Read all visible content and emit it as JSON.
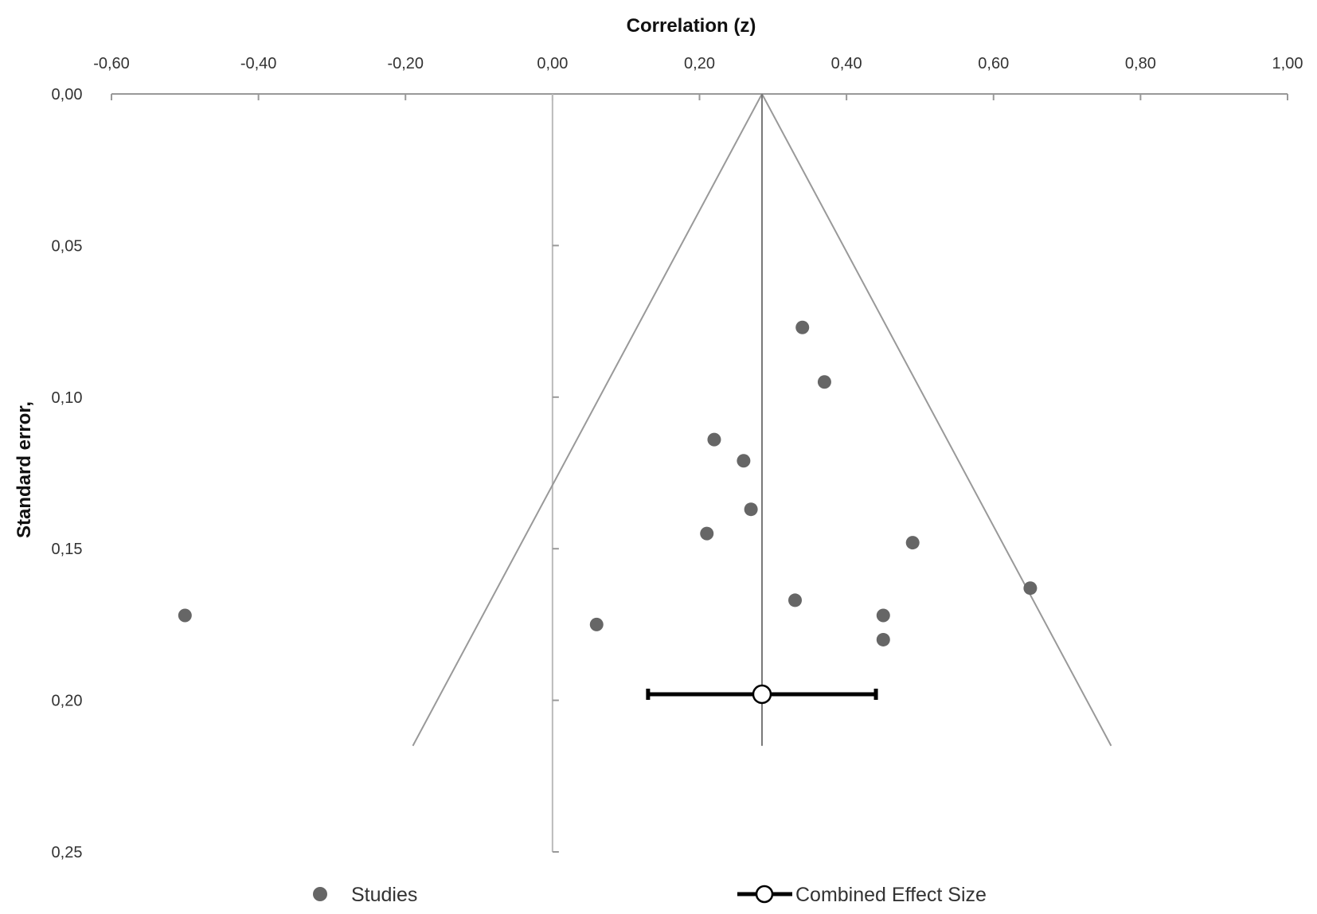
{
  "chart_data": {
    "type": "scatter",
    "subtype": "funnel-plot",
    "xlabel": "Correlation (z)",
    "ylabel": "Standard error,",
    "xlim": [
      -0.6,
      1.0
    ],
    "ylim": [
      0.0,
      0.25
    ],
    "y_reversed": true,
    "x_axis_position": "top",
    "x_ticks": [
      "-0,60",
      "-0,40",
      "-0,20",
      "0,00",
      "0,20",
      "0,40",
      "0,60",
      "0,80",
      "1,00"
    ],
    "y_ticks": [
      "0,00",
      "0,05",
      "0,10",
      "0,15",
      "0,20",
      "0,25"
    ],
    "grid": false,
    "legend_position": "bottom",
    "series": [
      {
        "name": "Studies",
        "marker": "filled-circle",
        "color": "#666666",
        "points": [
          {
            "x": 0.34,
            "y": 0.077
          },
          {
            "x": 0.37,
            "y": 0.095
          },
          {
            "x": 0.22,
            "y": 0.114
          },
          {
            "x": 0.26,
            "y": 0.121
          },
          {
            "x": 0.27,
            "y": 0.137
          },
          {
            "x": 0.21,
            "y": 0.145
          },
          {
            "x": 0.49,
            "y": 0.148
          },
          {
            "x": 0.65,
            "y": 0.163
          },
          {
            "x": 0.33,
            "y": 0.167
          },
          {
            "x": 0.45,
            "y": 0.172
          },
          {
            "x": -0.5,
            "y": 0.172
          },
          {
            "x": 0.06,
            "y": 0.175
          },
          {
            "x": 0.45,
            "y": 0.18
          }
        ]
      },
      {
        "name": "Combined Effect Size",
        "marker": "open-circle-with-ci",
        "color": "#000000",
        "point": {
          "x": 0.285,
          "y": 0.198
        },
        "ci": [
          0.13,
          0.44
        ]
      }
    ],
    "reference_lines": {
      "null_line_x": 0.0,
      "pooled_line_x": 0.285,
      "pooled_line_y_end": 0.215,
      "funnel_apex": {
        "x": 0.285,
        "y": 0.0
      },
      "funnel_bottom_y": 0.215,
      "funnel_left_x": -0.19,
      "funnel_right_x": 0.76
    },
    "colors": {
      "axis": "#999999",
      "lines": "#999999",
      "pooled": "#777777"
    }
  }
}
